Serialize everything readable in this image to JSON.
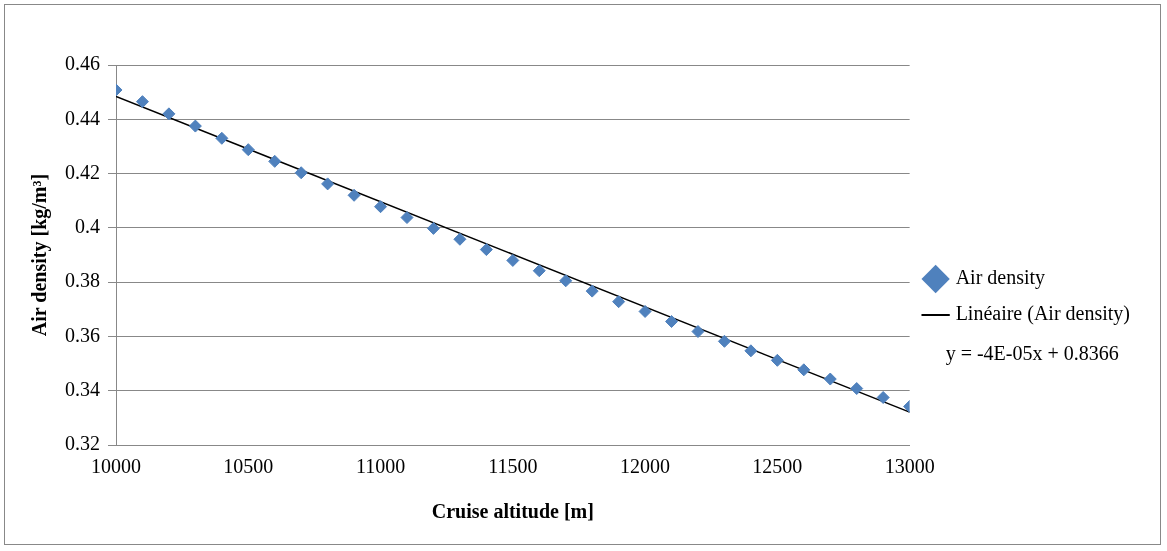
{
  "chart_data": {
    "type": "scatter",
    "xlabel": "Cruise altitude [m]",
    "ylabel": "Air density [kg/m³]",
    "x": [
      10000,
      10100,
      10200,
      10300,
      10400,
      10500,
      10600,
      10700,
      10800,
      10900,
      11000,
      11100,
      11200,
      11300,
      11400,
      11500,
      11600,
      11700,
      11800,
      11900,
      12000,
      12100,
      12200,
      12300,
      12400,
      12500,
      12600,
      12700,
      12800,
      12900,
      13000
    ],
    "series": [
      {
        "name": "Air density",
        "color": "#4f81bd",
        "marker": "diamond",
        "values": [
          0.4508,
          0.4465,
          0.442,
          0.4375,
          0.433,
          0.4288,
          0.4245,
          0.4203,
          0.4162,
          0.412,
          0.4078,
          0.4038,
          0.3998,
          0.3958,
          0.392,
          0.388,
          0.3842,
          0.3805,
          0.3767,
          0.3728,
          0.3692,
          0.3655,
          0.3618,
          0.3582,
          0.3547,
          0.3512,
          0.3477,
          0.3443,
          0.3408,
          0.3375,
          0.3342
        ]
      },
      {
        "name": "Linéaire (Air density)",
        "type": "line",
        "color": "#000000",
        "marker": "none",
        "x": [
          10000,
          13000
        ],
        "values": [
          0.4484,
          0.3321
        ]
      }
    ],
    "annotations": [
      "y = -4E-05x + 0.8366"
    ],
    "xlim": [
      10000,
      13000
    ],
    "xticks": [
      10000,
      10500,
      11000,
      11500,
      12000,
      12500,
      13000
    ],
    "ylim": [
      0.32,
      0.46
    ],
    "yticks": [
      {
        "value": 0.32,
        "label": "0.32"
      },
      {
        "value": 0.34,
        "label": "0.34"
      },
      {
        "value": 0.36,
        "label": "0.36"
      },
      {
        "value": 0.38,
        "label": "0.38"
      },
      {
        "value": 0.4,
        "label": "0.4"
      },
      {
        "value": 0.42,
        "label": "0.42"
      },
      {
        "value": 0.44,
        "label": "0.44"
      },
      {
        "value": 0.46,
        "label": "0.46"
      }
    ],
    "grid": "y",
    "legend": "right"
  }
}
